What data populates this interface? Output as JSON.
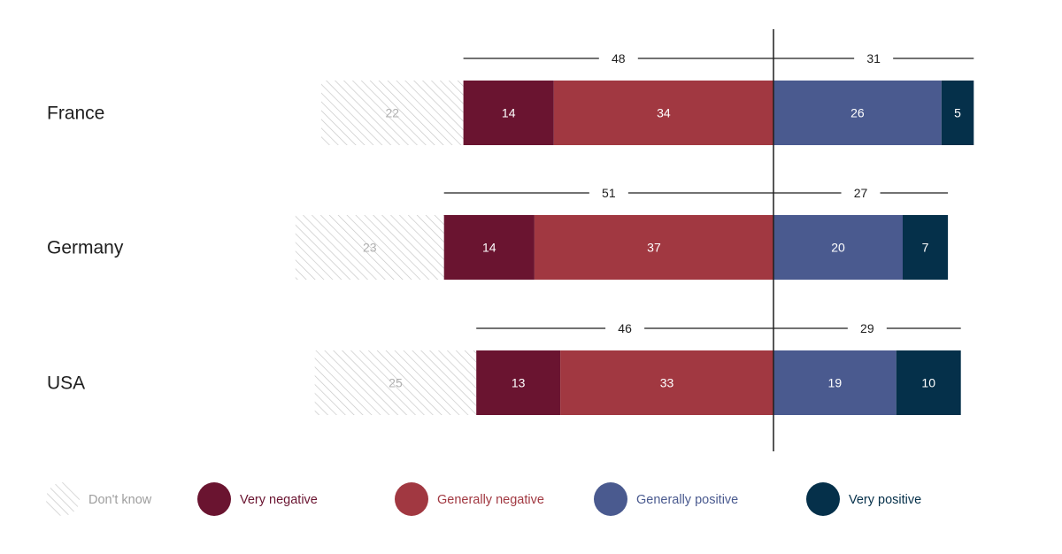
{
  "chart_data": {
    "type": "bar",
    "orientation": "horizontal",
    "stacked": "diverging",
    "categories": [
      "France",
      "Germany",
      "USA"
    ],
    "series": [
      {
        "name": "Don't know",
        "values": [
          22,
          23,
          25
        ],
        "color": "#b3b3b3",
        "pattern": "hatched"
      },
      {
        "name": "Very negative",
        "values": [
          14,
          14,
          13
        ],
        "color": "#6a1430"
      },
      {
        "name": "Generally negative",
        "values": [
          34,
          37,
          33
        ],
        "color": "#a13841"
      },
      {
        "name": "Generally positive",
        "values": [
          26,
          20,
          19
        ],
        "color": "#4a5a8f"
      },
      {
        "name": "Very positive",
        "values": [
          5,
          7,
          10
        ],
        "color": "#05304a"
      }
    ],
    "negative_totals": [
      48,
      51,
      46
    ],
    "positive_totals": [
      31,
      27,
      29
    ],
    "legend_position": "bottom",
    "grid": false
  }
}
